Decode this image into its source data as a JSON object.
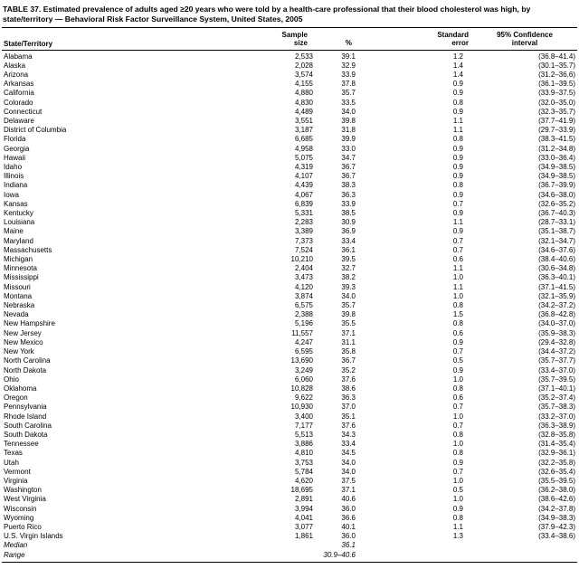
{
  "title": "TABLE 37. Estimated prevalence of adults aged ≥20 years who were told by a health-care professional that their blood cholesterol was high, by state/territory — Behavioral Risk Factor Surveillance System, United States, 2005",
  "table": {
    "headers": {
      "state": "State/Territory",
      "sample_line1": "Sample",
      "sample_line2": "size",
      "pct": "%",
      "se_line1": "Standard",
      "se_line2": "error",
      "ci_line1": "95% Confidence",
      "ci_line2": "interval"
    },
    "rows": [
      {
        "state": "Alabama",
        "sample": "2,533",
        "pct": "39.1",
        "se": "1.2",
        "ci": "(36.8–41.4)"
      },
      {
        "state": "Alaska",
        "sample": "2,028",
        "pct": "32.9",
        "se": "1.4",
        "ci": "(30.1–35.7)"
      },
      {
        "state": "Arizona",
        "sample": "3,574",
        "pct": "33.9",
        "se": "1.4",
        "ci": "(31.2–36.6)"
      },
      {
        "state": "Arkansas",
        "sample": "4,155",
        "pct": "37.8",
        "se": "0.9",
        "ci": "(36.1–39.5)"
      },
      {
        "state": "California",
        "sample": "4,880",
        "pct": "35.7",
        "se": "0.9",
        "ci": "(33.9–37.5)"
      },
      {
        "state": "Colorado",
        "sample": "4,830",
        "pct": "33.5",
        "se": "0.8",
        "ci": "(32.0–35.0)"
      },
      {
        "state": "Connecticut",
        "sample": "4,489",
        "pct": "34.0",
        "se": "0.9",
        "ci": "(32.3–35.7)"
      },
      {
        "state": "Delaware",
        "sample": "3,551",
        "pct": "39.8",
        "se": "1.1",
        "ci": "(37.7–41.9)"
      },
      {
        "state": "District of Columbia",
        "sample": "3,187",
        "pct": "31.8",
        "se": "1.1",
        "ci": "(29.7–33.9)"
      },
      {
        "state": "Florida",
        "sample": "6,685",
        "pct": "39.9",
        "se": "0.8",
        "ci": "(38.3–41.5)"
      },
      {
        "state": "Georgia",
        "sample": "4,958",
        "pct": "33.0",
        "se": "0.9",
        "ci": "(31.2–34.8)"
      },
      {
        "state": "Hawaii",
        "sample": "5,075",
        "pct": "34.7",
        "se": "0.9",
        "ci": "(33.0–36.4)"
      },
      {
        "state": "Idaho",
        "sample": "4,319",
        "pct": "36.7",
        "se": "0.9",
        "ci": "(34.9–38.5)"
      },
      {
        "state": "Illinois",
        "sample": "4,107",
        "pct": "36.7",
        "se": "0.9",
        "ci": "(34.9–38.5)"
      },
      {
        "state": "Indiana",
        "sample": "4,439",
        "pct": "38.3",
        "se": "0.8",
        "ci": "(36.7–39.9)"
      },
      {
        "state": "Iowa",
        "sample": "4,067",
        "pct": "36.3",
        "se": "0.9",
        "ci": "(34.6–38.0)"
      },
      {
        "state": "Kansas",
        "sample": "6,839",
        "pct": "33.9",
        "se": "0.7",
        "ci": "(32.6–35.2)"
      },
      {
        "state": "Kentucky",
        "sample": "5,331",
        "pct": "38.5",
        "se": "0.9",
        "ci": "(36.7–40.3)"
      },
      {
        "state": "Louisiana",
        "sample": "2,283",
        "pct": "30.9",
        "se": "1.1",
        "ci": "(28.7–33.1)"
      },
      {
        "state": "Maine",
        "sample": "3,389",
        "pct": "36.9",
        "se": "0.9",
        "ci": "(35.1–38.7)"
      },
      {
        "state": "Maryland",
        "sample": "7,373",
        "pct": "33.4",
        "se": "0.7",
        "ci": "(32.1–34.7)"
      },
      {
        "state": "Massachusetts",
        "sample": "7,524",
        "pct": "36.1",
        "se": "0.7",
        "ci": "(34.6–37.6)"
      },
      {
        "state": "Michigan",
        "sample": "10,210",
        "pct": "39.5",
        "se": "0.6",
        "ci": "(38.4–40.6)"
      },
      {
        "state": "Minnesota",
        "sample": "2,404",
        "pct": "32.7",
        "se": "1.1",
        "ci": "(30.6–34.8)"
      },
      {
        "state": "Mississippi",
        "sample": "3,473",
        "pct": "38.2",
        "se": "1.0",
        "ci": "(36.3–40.1)"
      },
      {
        "state": "Missouri",
        "sample": "4,120",
        "pct": "39.3",
        "se": "1.1",
        "ci": "(37.1–41.5)"
      },
      {
        "state": "Montana",
        "sample": "3,874",
        "pct": "34.0",
        "se": "1.0",
        "ci": "(32.1–35.9)"
      },
      {
        "state": "Nebraska",
        "sample": "6,575",
        "pct": "35.7",
        "se": "0.8",
        "ci": "(34.2–37.2)"
      },
      {
        "state": "Nevada",
        "sample": "2,388",
        "pct": "39.8",
        "se": "1.5",
        "ci": "(36.8–42.8)"
      },
      {
        "state": "New Hampshire",
        "sample": "5,196",
        "pct": "35.5",
        "se": "0.8",
        "ci": "(34.0–37.0)"
      },
      {
        "state": "New Jersey",
        "sample": "11,557",
        "pct": "37.1",
        "se": "0.6",
        "ci": "(35.9–38.3)"
      },
      {
        "state": "New Mexico",
        "sample": "4,247",
        "pct": "31.1",
        "se": "0.9",
        "ci": "(29.4–32.8)"
      },
      {
        "state": "New York",
        "sample": "6,595",
        "pct": "35.8",
        "se": "0.7",
        "ci": "(34.4–37.2)"
      },
      {
        "state": "North Carolina",
        "sample": "13,690",
        "pct": "36.7",
        "se": "0.5",
        "ci": "(35.7–37.7)"
      },
      {
        "state": "North Dakota",
        "sample": "3,249",
        "pct": "35.2",
        "se": "0.9",
        "ci": "(33.4–37.0)"
      },
      {
        "state": "Ohio",
        "sample": "6,060",
        "pct": "37.6",
        "se": "1.0",
        "ci": "(35.7–39.5)"
      },
      {
        "state": "Oklahoma",
        "sample": "10,828",
        "pct": "38.6",
        "se": "0.8",
        "ci": "(37.1–40.1)"
      },
      {
        "state": "Oregon",
        "sample": "9,622",
        "pct": "36.3",
        "se": "0.6",
        "ci": "(35.2–37.4)"
      },
      {
        "state": "Pennsylvania",
        "sample": "10,930",
        "pct": "37.0",
        "se": "0.7",
        "ci": "(35.7–38.3)"
      },
      {
        "state": "Rhode Island",
        "sample": "3,400",
        "pct": "35.1",
        "se": "1.0",
        "ci": "(33.2–37.0)"
      },
      {
        "state": "South Carolina",
        "sample": "7,177",
        "pct": "37.6",
        "se": "0.7",
        "ci": "(36.3–38.9)"
      },
      {
        "state": "South Dakota",
        "sample": "5,513",
        "pct": "34.3",
        "se": "0.8",
        "ci": "(32.8–35.8)"
      },
      {
        "state": "Tennessee",
        "sample": "3,886",
        "pct": "33.4",
        "se": "1.0",
        "ci": "(31.4–35.4)"
      },
      {
        "state": "Texas",
        "sample": "4,810",
        "pct": "34.5",
        "se": "0.8",
        "ci": "(32.9–36.1)"
      },
      {
        "state": "Utah",
        "sample": "3,753",
        "pct": "34.0",
        "se": "0.9",
        "ci": "(32.2–35.8)"
      },
      {
        "state": "Vermont",
        "sample": "5,784",
        "pct": "34.0",
        "se": "0.7",
        "ci": "(32.6–35.4)"
      },
      {
        "state": "Virginia",
        "sample": "4,620",
        "pct": "37.5",
        "se": "1.0",
        "ci": "(35.5–39.5)"
      },
      {
        "state": "Washington",
        "sample": "18,695",
        "pct": "37.1",
        "se": "0.5",
        "ci": "(36.2–38.0)"
      },
      {
        "state": "West Virginia",
        "sample": "2,891",
        "pct": "40.6",
        "se": "1.0",
        "ci": "(38.6–42.6)"
      },
      {
        "state": "Wisconsin",
        "sample": "3,994",
        "pct": "36.0",
        "se": "0.9",
        "ci": "(34.2–37.8)"
      },
      {
        "state": "Wyoming",
        "sample": "4,041",
        "pct": "36.6",
        "se": "0.8",
        "ci": "(34.9–38.3)"
      },
      {
        "state": "Puerto Rico",
        "sample": "3,077",
        "pct": "40.1",
        "se": "1.1",
        "ci": "(37.9–42.3)"
      },
      {
        "state": "U.S. Virgin Islands",
        "sample": "1,861",
        "pct": "36.0",
        "se": "1.3",
        "ci": "(33.4–38.6)"
      }
    ],
    "summary_rows": [
      {
        "state": "Median",
        "sample": "",
        "pct": "36.1",
        "se": "",
        "ci": ""
      },
      {
        "state": "Range",
        "sample": "",
        "pct": "30.9–40.6",
        "se": "",
        "ci": ""
      }
    ]
  }
}
